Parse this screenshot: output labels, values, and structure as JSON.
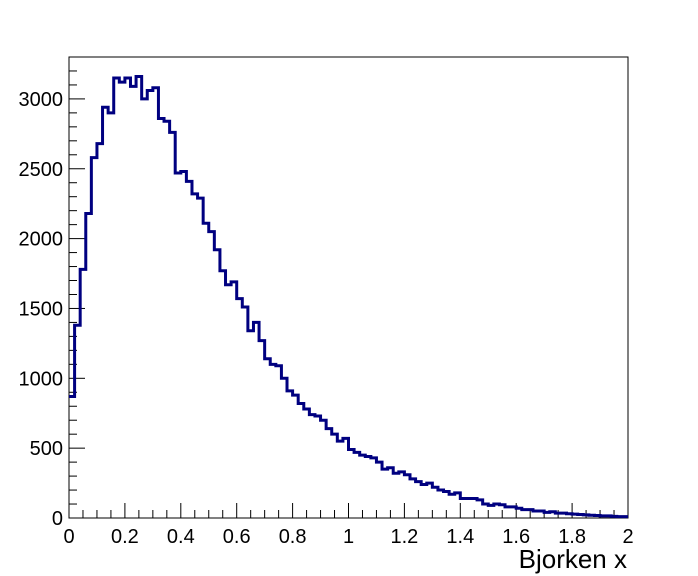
{
  "chart_data": {
    "type": "histogram",
    "title": "",
    "xlabel": "Bjorken x",
    "ylabel": "",
    "xlim": [
      0,
      2
    ],
    "ylim": [
      0,
      3300
    ],
    "grid": false,
    "legend": "none",
    "line_color": "#000080",
    "x_ticks": [
      "0",
      "0.2",
      "0.4",
      "0.6",
      "0.8",
      "1",
      "1.2",
      "1.4",
      "1.6",
      "1.8",
      "2"
    ],
    "y_ticks": [
      "0",
      "500",
      "1000",
      "1500",
      "2000",
      "2500",
      "3000"
    ],
    "bin_width": 0.02,
    "bin_start": 0,
    "values": [
      870,
      1380,
      1780,
      2180,
      2580,
      2680,
      2940,
      2900,
      3150,
      3120,
      3150,
      3090,
      3160,
      3000,
      3060,
      3080,
      2860,
      2840,
      2760,
      2470,
      2480,
      2410,
      2320,
      2290,
      2110,
      2050,
      1920,
      1770,
      1670,
      1690,
      1570,
      1510,
      1340,
      1400,
      1270,
      1140,
      1100,
      1090,
      1000,
      910,
      880,
      820,
      780,
      740,
      730,
      700,
      640,
      600,
      550,
      570,
      490,
      470,
      450,
      440,
      430,
      400,
      350,
      360,
      320,
      330,
      310,
      280,
      260,
      240,
      250,
      220,
      200,
      190,
      170,
      180,
      140,
      140,
      140,
      130,
      100,
      90,
      100,
      95,
      80,
      80,
      70,
      60,
      60,
      50,
      50,
      40,
      45,
      35,
      35,
      30,
      28,
      25,
      22,
      20,
      18,
      15,
      15,
      12,
      10,
      10
    ]
  }
}
